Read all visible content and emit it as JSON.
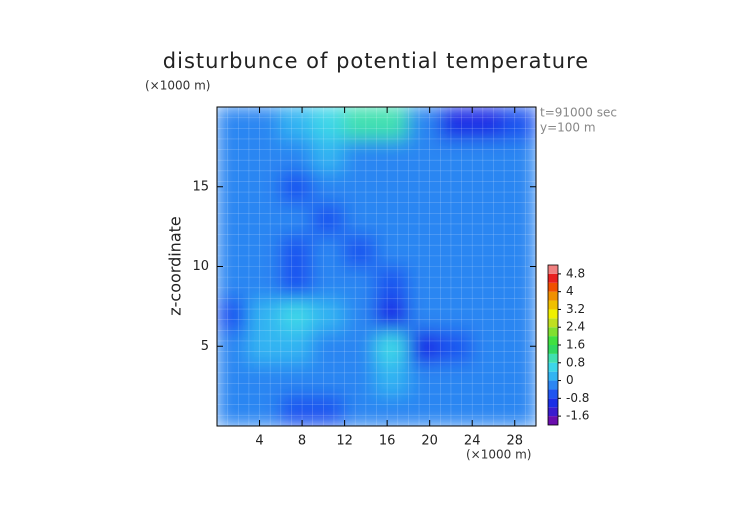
{
  "chart_data": {
    "type": "contour",
    "title": "disturbunce of potential temperature",
    "y_unit": "(×1000 m)",
    "x_unit": "(×1000 m)",
    "ylabel": "z-coordinate",
    "annotations": [
      "t=91000 sec",
      "y=100 m"
    ],
    "xlim": [
      0,
      30
    ],
    "ylim": [
      0,
      20
    ],
    "xticks": [
      4,
      8,
      12,
      16,
      20,
      24,
      28
    ],
    "yticks": [
      5,
      10,
      15
    ],
    "x": [
      1.5,
      4.5,
      7.5,
      10.5,
      13.5,
      16.5,
      19.5,
      22.5,
      25.5,
      28.5
    ],
    "z": [
      1,
      3,
      5,
      7,
      9,
      11,
      13,
      15,
      17,
      19
    ],
    "values": [
      [
        -0.3,
        -0.2,
        -0.5,
        -0.6,
        -0.2,
        -0.2,
        -0.3,
        -0.2,
        -0.1,
        -0.2
      ],
      [
        -0.2,
        -0.3,
        -0.2,
        -0.1,
        -0.2,
        0.1,
        -0.4,
        -0.3,
        -0.2,
        -0.1
      ],
      [
        -0.3,
        0.1,
        0.2,
        -0.2,
        -0.3,
        0.5,
        -0.9,
        -0.7,
        -0.4,
        -0.2
      ],
      [
        -0.5,
        0.3,
        0.6,
        0.3,
        -0.2,
        -1.2,
        -0.4,
        -0.3,
        -0.2,
        -0.4
      ],
      [
        -0.3,
        -0.2,
        -0.5,
        -0.2,
        -0.3,
        -0.6,
        -0.2,
        -0.1,
        -0.2,
        -0.3
      ],
      [
        -0.2,
        -0.3,
        -0.6,
        -0.1,
        -0.5,
        -0.3,
        -0.2,
        -0.2,
        -0.3,
        -0.2
      ],
      [
        -0.3,
        -0.4,
        -0.2,
        -0.5,
        -0.3,
        -0.4,
        -0.3,
        -0.2,
        -0.2,
        -0.3
      ],
      [
        -0.2,
        -0.3,
        -0.6,
        -0.2,
        -0.4,
        -0.2,
        -0.3,
        -0.2,
        -0.1,
        -0.2
      ],
      [
        -0.4,
        -0.2,
        -0.3,
        0.3,
        -0.2,
        -0.3,
        -0.3,
        -0.2,
        -0.3,
        -0.2
      ],
      [
        -0.2,
        -0.1,
        0.2,
        0.6,
        0.9,
        1.0,
        -0.3,
        -0.8,
        -0.9,
        -0.5
      ]
    ],
    "clim": [
      -2,
      5.2
    ],
    "cticks": [
      4.8,
      4,
      3.2,
      2.4,
      1.6,
      0.8,
      0,
      -0.8,
      -1.6
    ],
    "colors": [
      "#6a0dad",
      "#3a1ccf",
      "#1a2ee6",
      "#1f55f0",
      "#2c86f2",
      "#33b4f2",
      "#3cd6e8",
      "#40e0b0",
      "#30d860",
      "#40e040",
      "#80e030",
      "#c0e020",
      "#f0f000",
      "#f0c000",
      "#f09000",
      "#f05000",
      "#e82020",
      "#f08080"
    ]
  }
}
